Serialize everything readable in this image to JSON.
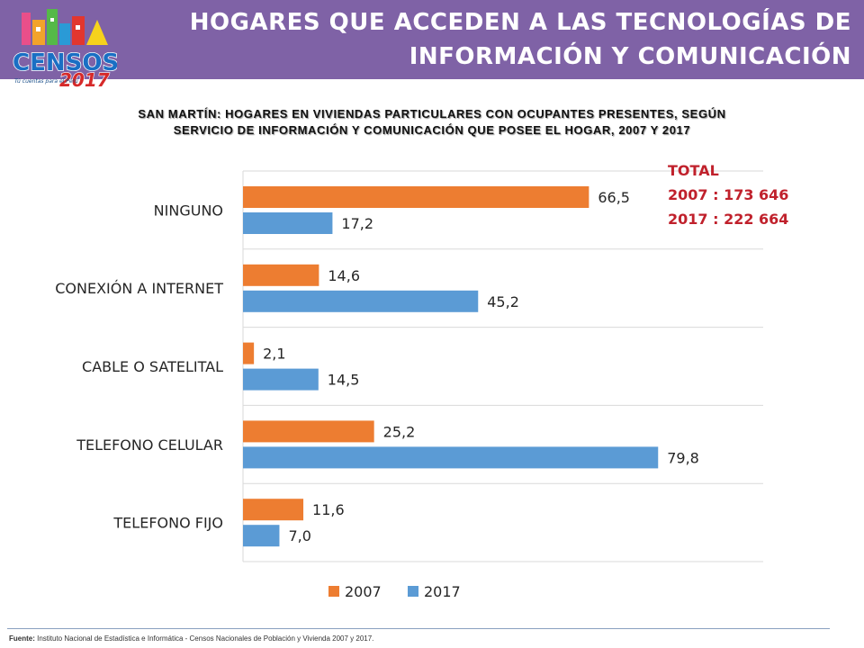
{
  "header": {
    "title_line1": "HOGARES QUE ACCEDEN A LAS TECNOLOGÍAS DE",
    "title_line2": "INFORMACIÓN Y COMUNICACIÓN",
    "logo_text": "CENSOS",
    "logo_year": "2017",
    "logo_tagline": "Tú cuentas para el Perú"
  },
  "subtitle_line1": "SAN MARTÍN: HOGARES EN VIVIENDAS PARTICULARES CON OCUPANTES PRESENTES, SEGÚN",
  "subtitle_line2": "SERVICIO DE INFORMACIÓN Y COMUNICACIÓN  QUE POSEE EL HOGAR, 2007 Y 2017",
  "total": {
    "label": "TOTAL",
    "line2007": "2007 : 173 646",
    "line2017": "2017 : 222 664"
  },
  "footer": {
    "label": "Fuente:",
    "text": " Instituto Nacional de Estadística e Informática - Censos Nacionales de Población y Vivienda 2007 y 2017."
  },
  "colors": {
    "s2007": "#ed7d31",
    "s2017": "#5b9bd5",
    "header": "#7f62a6",
    "total": "#c0212c"
  },
  "chart_data": {
    "type": "bar",
    "orientation": "horizontal",
    "categories": [
      "NINGUNO",
      "CONEXIÓN A INTERNET",
      "CABLE O SATELITAL",
      "TELEFONO CELULAR",
      "TELEFONO FIJO"
    ],
    "series": [
      {
        "name": "2007",
        "values": [
          66.5,
          14.6,
          2.1,
          25.2,
          11.6
        ],
        "labels": [
          "66,5",
          "14,6",
          "2,1",
          "25,2",
          "11,6"
        ]
      },
      {
        "name": "2017",
        "values": [
          17.2,
          45.2,
          14.5,
          79.8,
          7.0
        ],
        "labels": [
          "17,2",
          "45,2",
          "14,5",
          "79,8",
          "7,0"
        ]
      }
    ],
    "xlim": [
      0,
      100
    ],
    "legend": "bottom",
    "grid": "horizontal-category-lines"
  }
}
